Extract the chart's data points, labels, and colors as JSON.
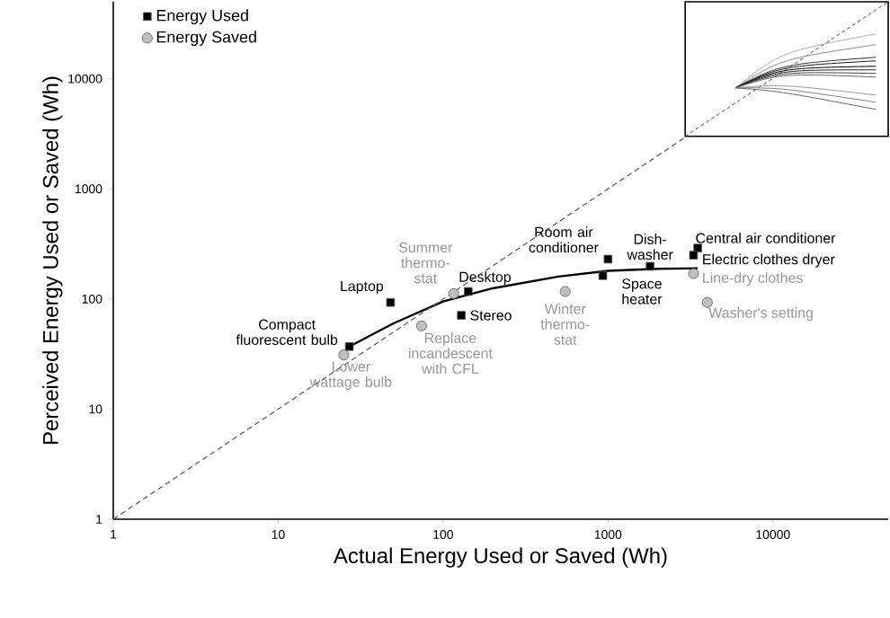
{
  "chart_data": {
    "type": "scatter",
    "xlabel": "Actual Energy Used or Saved (Wh)",
    "ylabel": "Perceived Energy Used or Saved (Wh)",
    "log": "xy",
    "xlim": [
      1,
      50000
    ],
    "ylim": [
      1,
      50000
    ],
    "xticks": [
      1,
      10,
      100,
      1000,
      10000
    ],
    "yticks": [
      1,
      10,
      100,
      1000,
      10000
    ],
    "grid": false,
    "legend": "top left",
    "series": [
      {
        "name": "Energy Used",
        "marker": "square",
        "color": "#000000",
        "x": [
          27,
          48,
          142,
          129,
          1000,
          930,
          1800,
          3500,
          3300
        ],
        "values": [
          37,
          93,
          117,
          71,
          230,
          163,
          198,
          290,
          250
        ]
      },
      {
        "name": "Energy Saved",
        "marker": "circle",
        "color": "#c0c0c0",
        "x": [
          25,
          116,
          74,
          550,
          3300,
          4000
        ],
        "values": [
          31,
          112,
          57,
          117,
          170,
          93
        ]
      },
      {
        "type": "line",
        "marker": "none",
        "line_style": "solid",
        "color": "#000000",
        "x": [
          27,
          50,
          100,
          200,
          500,
          1000,
          2000,
          3500
        ],
        "values": [
          37,
          60,
          95,
          125,
          160,
          180,
          188,
          190
        ]
      },
      {
        "type": "line",
        "marker": "none",
        "line_style": "dashed",
        "color": "#555555",
        "x": [
          1,
          50000
        ],
        "values": [
          1,
          50000
        ]
      }
    ],
    "annotations": [
      {
        "text": "Compact fluorescent bulb",
        "x": 27,
        "y": 37
      },
      {
        "text": "Laptop",
        "x": 48,
        "y": 93
      },
      {
        "text": "Desktop",
        "x": 142,
        "y": 117
      },
      {
        "text": "Stereo",
        "x": 129,
        "y": 71
      },
      {
        "text": "Room air conditioner",
        "x": 1000,
        "y": 230
      },
      {
        "text": "Space heater",
        "x": 930,
        "y": 163
      },
      {
        "text": "Dish-washer",
        "x": 1800,
        "y": 198
      },
      {
        "text": "Central air conditioner",
        "x": 3500,
        "y": 290
      },
      {
        "text": "Electric clothes dryer",
        "x": 3300,
        "y": 250
      },
      {
        "text": "Lower wattage bulb",
        "x": 25,
        "y": 31
      },
      {
        "text": "Summer thermo-stat",
        "x": 116,
        "y": 112
      },
      {
        "text": "Replace incandescent with CFL",
        "x": 74,
        "y": 57
      },
      {
        "text": "Winter thermo-stat",
        "x": 550,
        "y": 117
      },
      {
        "text": "Line-dry clothes",
        "x": 3300,
        "y": 170
      },
      {
        "text": "Washer's setting",
        "x": 4000,
        "y": 93
      }
    ]
  }
}
